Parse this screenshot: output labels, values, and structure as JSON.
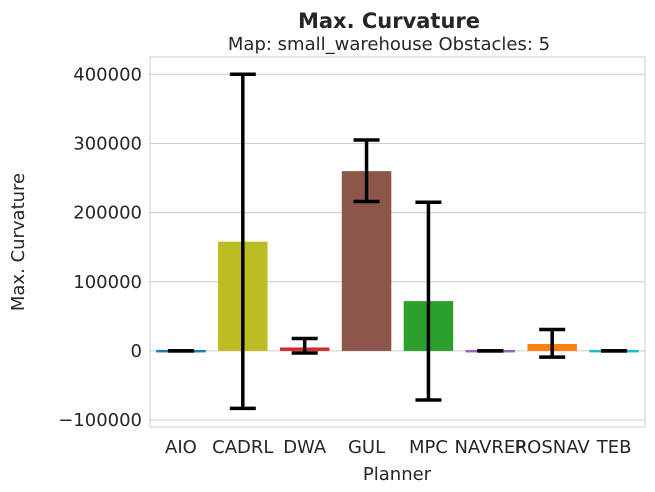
{
  "chart_data": {
    "type": "bar",
    "title": "Max. Curvature",
    "subtitle": "Map: small_warehouse Obstacles: 5",
    "xlabel": "Planner",
    "ylabel": "Max. Curvature",
    "ylim": [
      -110000,
      425000
    ],
    "yticks": [
      -100000,
      0,
      100000,
      200000,
      300000,
      400000
    ],
    "ytick_labels": [
      "−100000",
      "0",
      "100000",
      "200000",
      "300000",
      "400000"
    ],
    "grid": true,
    "categories": [
      "AIO",
      "CADRL",
      "DWA",
      "GUL",
      "MPC",
      "NAVREP",
      "ROSNAV",
      "TEB"
    ],
    "values": [
      0,
      158000,
      5000,
      260000,
      72000,
      0,
      10000,
      0
    ],
    "error_low": [
      0,
      -83000,
      -3000,
      216000,
      -71000,
      0,
      -9000,
      0
    ],
    "error_high": [
      0,
      400000,
      18000,
      305000,
      215000,
      0,
      31000,
      0
    ],
    "colors": [
      "#1f77b4",
      "#bcbd22",
      "#d62728",
      "#8c564b",
      "#2ca02c",
      "#9467bd",
      "#ff7f0e",
      "#17becf"
    ]
  }
}
